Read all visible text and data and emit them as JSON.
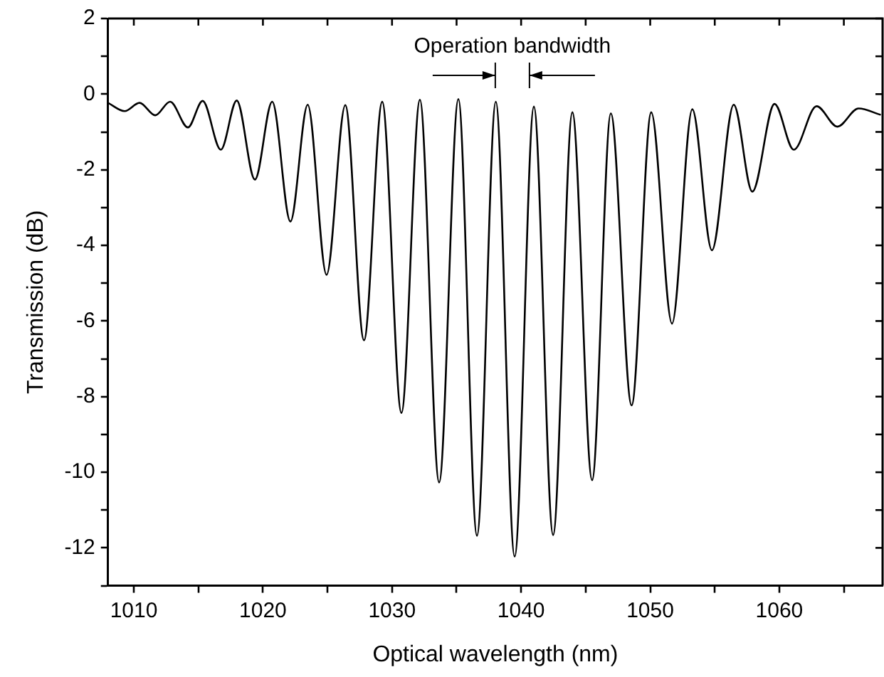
{
  "chart_data": {
    "type": "line",
    "xlabel": "Optical wavelength (nm)",
    "ylabel": "Transmission (dB)",
    "x": [
      1008,
      1009.29,
      1010.44,
      1011.66,
      1012.81,
      1014.19,
      1015.33,
      1016.74,
      1017.97,
      1019.38,
      1020.72,
      1022.13,
      1023.47,
      1024.93,
      1026.38,
      1027.83,
      1029.24,
      1030.73,
      1032.16,
      1033.65,
      1035.14,
      1036.58,
      1038.04,
      1039.5,
      1040.99,
      1042.48,
      1043.97,
      1045.5,
      1046.95,
      1048.56,
      1050.08,
      1051.69,
      1053.26,
      1054.78,
      1056.47,
      1057.91,
      1059.63,
      1061.12,
      1062.89,
      1064.5,
      1066.14,
      1067.86
    ],
    "series": [
      {
        "color": "#000000",
        "values": [
          -0.23,
          -0.45,
          -0.23,
          -0.56,
          -0.2,
          -0.88,
          -0.18,
          -1.47,
          -0.17,
          -2.26,
          -0.2,
          -3.37,
          -0.28,
          -4.78,
          -0.29,
          -6.51,
          -0.2,
          -8.43,
          -0.15,
          -10.27,
          -0.13,
          -11.68,
          -0.2,
          -12.23,
          -0.33,
          -11.66,
          -0.48,
          -10.21,
          -0.51,
          -8.23,
          -0.48,
          -6.07,
          -0.4,
          -4.13,
          -0.28,
          -2.58,
          -0.26,
          -1.47,
          -0.32,
          -0.86,
          -0.38,
          -0.55
        ]
      }
    ],
    "xlim": [
      1008,
      1068
    ],
    "xticks": [
      1010,
      {
        "value": 1015,
        "label": null
      },
      1020,
      {
        "value": 1025,
        "label": null
      },
      1030,
      {
        "value": 1035,
        "label": null
      },
      1040,
      {
        "value": 1045,
        "label": null
      },
      1050,
      {
        "value": 1055,
        "label": null
      },
      1060,
      {
        "value": 1065,
        "label": null
      }
    ],
    "ylim": [
      -13,
      2
    ],
    "yticks": [
      {
        "value": -13,
        "label": null
      },
      -12,
      {
        "value": -11,
        "label": null
      },
      -10,
      {
        "value": -9,
        "label": null
      },
      -8,
      {
        "value": -7,
        "label": null
      },
      -6,
      {
        "value": -5,
        "label": null
      },
      -4,
      {
        "value": -3,
        "label": null
      },
      -2,
      {
        "value": -1,
        "label": null
      },
      0,
      {
        "value": 1,
        "label": null
      },
      2
    ],
    "annotations": [
      "Operation bandwidth"
    ],
    "grid": false,
    "legend": false,
    "marker": "none",
    "line_style": "solid"
  }
}
